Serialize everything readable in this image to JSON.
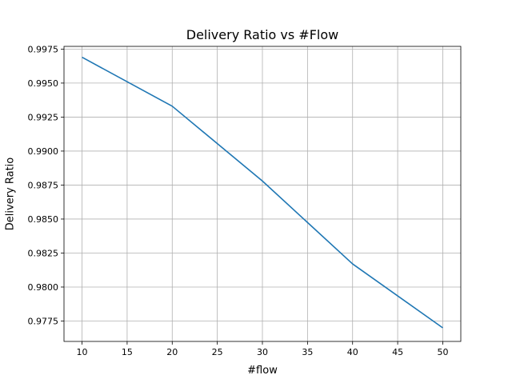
{
  "chart_data": {
    "type": "line",
    "title": "Delivery Ratio vs #Flow",
    "xlabel": "#flow",
    "ylabel": "Delivery Ratio",
    "x": [
      10,
      20,
      30,
      40,
      50
    ],
    "series": [
      {
        "values": [
          0.9969,
          0.9933,
          0.9878,
          0.9817,
          0.977
        ]
      }
    ],
    "xlim": [
      8.0,
      52.0
    ],
    "ylim": [
      0.976,
      0.9977
    ],
    "xticks": [
      10,
      15,
      20,
      25,
      30,
      35,
      40,
      45,
      50
    ],
    "xtick_labels": [
      "10",
      "15",
      "20",
      "25",
      "30",
      "35",
      "40",
      "45",
      "50"
    ],
    "yticks": [
      0.9775,
      0.98,
      0.9825,
      0.985,
      0.9875,
      0.99,
      0.9925,
      0.995,
      0.9975
    ],
    "ytick_labels": [
      "0.9775",
      "0.9800",
      "0.9825",
      "0.9850",
      "0.9875",
      "0.9900",
      "0.9925",
      "0.9950",
      "0.9975"
    ],
    "grid": true,
    "legend": false,
    "line_color": "#1f77b4",
    "grid_color": "#b0b0b0"
  }
}
